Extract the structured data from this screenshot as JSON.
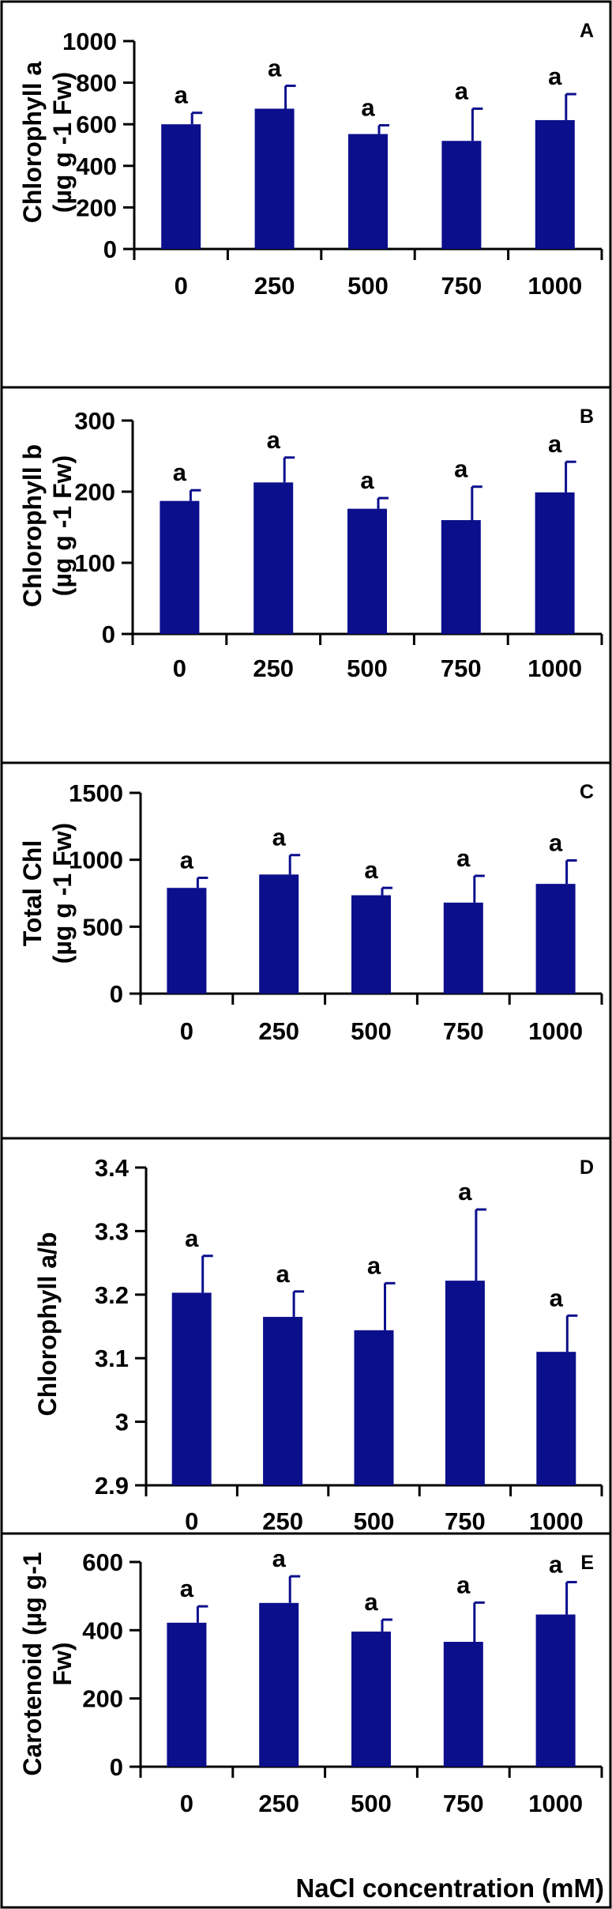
{
  "colors": {
    "bar": "#0b0f8c",
    "axis": "#000000",
    "background": "#ffffff"
  },
  "xlabel": "NaCl concentration (mM)",
  "chart_data": [
    {
      "type": "bar",
      "panel_label": "A",
      "ylabel_lines": [
        "Chlorophyll a",
        "(µg g -1 Fw)"
      ],
      "categories": [
        "0",
        "250",
        "500",
        "750",
        "1000"
      ],
      "values": [
        600,
        675,
        553,
        520,
        620
      ],
      "errors": [
        55,
        110,
        42,
        155,
        125
      ],
      "significance": [
        "a",
        "a",
        "a",
        "a",
        "a"
      ],
      "ylim": [
        0,
        1000
      ],
      "yticks": [
        0,
        200,
        400,
        600,
        800,
        1000
      ],
      "ytick_labels": [
        "0",
        "200",
        "400",
        "600",
        "800",
        "1000"
      ]
    },
    {
      "type": "bar",
      "panel_label": "B",
      "ylabel_lines": [
        "Chlorophyll b",
        "(µg g -1 Fw)"
      ],
      "categories": [
        "0",
        "250",
        "500",
        "750",
        "1000"
      ],
      "values": [
        187,
        213,
        176,
        160,
        199
      ],
      "errors": [
        15,
        35,
        15,
        47,
        43
      ],
      "significance": [
        "a",
        "a",
        "a",
        "a",
        "a"
      ],
      "ylim": [
        0,
        300
      ],
      "yticks": [
        0,
        100,
        200,
        300
      ],
      "ytick_labels": [
        "0",
        "100",
        "200",
        "300"
      ]
    },
    {
      "type": "bar",
      "panel_label": "C",
      "ylabel_lines": [
        "Total Chl",
        "(µg g -1 Fw)"
      ],
      "categories": [
        "0",
        "250",
        "500",
        "750",
        "1000"
      ],
      "values": [
        790,
        890,
        735,
        680,
        820
      ],
      "errors": [
        75,
        145,
        55,
        200,
        175
      ],
      "significance": [
        "a",
        "a",
        "a",
        "a",
        "a"
      ],
      "ylim": [
        0,
        1500
      ],
      "yticks": [
        0,
        500,
        1000,
        1500
      ],
      "ytick_labels": [
        "0",
        "500",
        "1000",
        "1500"
      ]
    },
    {
      "type": "bar",
      "panel_label": "D",
      "ylabel_lines": [
        "Chlorophyll a/b"
      ],
      "categories": [
        "0",
        "250",
        "500",
        "750",
        "1000"
      ],
      "values": [
        3.203,
        3.165,
        3.144,
        3.222,
        3.11
      ],
      "errors": [
        0.058,
        0.04,
        0.074,
        0.112,
        0.057
      ],
      "significance": [
        "a",
        "a",
        "a",
        "a",
        "a"
      ],
      "ylim": [
        2.9,
        3.4
      ],
      "yticks": [
        2.9,
        3.0,
        3.1,
        3.2,
        3.3,
        3.4
      ],
      "ytick_labels": [
        "2.9",
        "3",
        "3.1",
        "3.2",
        "3.3",
        "3.4"
      ]
    },
    {
      "type": "bar",
      "panel_label": "E",
      "ylabel_lines": [
        "Carotenoid (µg g-1",
        "Fw)"
      ],
      "categories": [
        "0",
        "250",
        "500",
        "750",
        "1000"
      ],
      "values": [
        422,
        480,
        396,
        366,
        446
      ],
      "errors": [
        48,
        78,
        35,
        115,
        95
      ],
      "significance": [
        "a",
        "a",
        "a",
        "a",
        "a"
      ],
      "ylim": [
        0,
        600
      ],
      "yticks": [
        0,
        200,
        400,
        600
      ],
      "ytick_labels": [
        "0",
        "200",
        "400",
        "600"
      ]
    }
  ]
}
